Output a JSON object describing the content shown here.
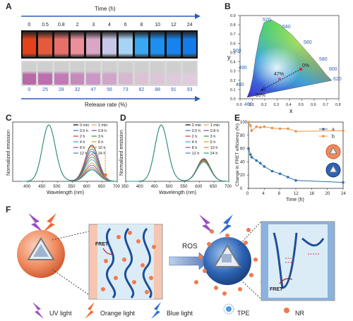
{
  "panel_labels": {
    "a": "A",
    "b": "B",
    "c": "C",
    "d": "D",
    "e": "E",
    "f": "F"
  },
  "panel_a": {
    "time_title": "Time (h)",
    "time_labels": [
      "0",
      "0.5",
      "0.8",
      "2",
      "3",
      "4",
      "6",
      "8",
      "10",
      "12",
      "24"
    ],
    "release_title": "Release rate (%)",
    "release_values": [
      "0",
      "25",
      "28",
      "32",
      "47",
      "56",
      "73",
      "82",
      "88",
      "91",
      "93"
    ],
    "vial_colors": [
      "#e2431c",
      "#e65a3c",
      "#e8706a",
      "#eb8f9b",
      "#d9a6c6",
      "#c9c7e8",
      "#a7d4f4",
      "#39a7f2",
      "#1c8ff0",
      "#1683ee",
      "#147ce9"
    ],
    "sample_colors": [
      "#b66aa6",
      "#bc6faf",
      "#c27bb5",
      "#c889bc",
      "#cc97c4",
      "#cfa6c9",
      "#d6b9cf",
      "#dbc3d4",
      "#ddc6d8",
      "#dfcadb",
      "#e0ccdc"
    ]
  },
  "panel_b": {
    "xlabel": "x",
    "ylabel": "y",
    "locus_labels": [
      "520",
      "540",
      "560",
      "580",
      "600",
      "620",
      "500",
      "490",
      "480",
      "460"
    ],
    "xticks": [
      "0.0",
      "0.1",
      "0.2",
      "0.3",
      "0.4",
      "0.5",
      "0.6",
      "0.7",
      "0.8"
    ],
    "yticks": [
      "0.0",
      "0.1",
      "0.2",
      "0.3",
      "0.4",
      "0.5",
      "0.6",
      "0.7",
      "0.8",
      "0.9"
    ],
    "point_labels": [
      "47%",
      "0%",
      "93%"
    ]
  },
  "chart_data": [
    {
      "panel": "C",
      "type": "line",
      "xlabel": "Wavelength (nm)",
      "ylabel": "Normalized emission",
      "xlim": [
        350,
        700
      ],
      "ylim": [
        0,
        1.1
      ],
      "xticks": [
        "400",
        "450",
        "500",
        "550",
        "600",
        "650",
        "700"
      ],
      "legend_position": "top-right",
      "series": [
        {
          "name": "0 min",
          "color": "#000000",
          "peak2": 0.67
        },
        {
          "name": "1 min",
          "color": "#f29a54",
          "peak2": 0.65
        },
        {
          "name": "0.5 h",
          "color": "#2b7bd8",
          "peak2": 0.6
        },
        {
          "name": "0.8 h",
          "color": "#7b4aa8",
          "peak2": 0.56
        },
        {
          "name": "2 h",
          "color": "#c0392b",
          "peak2": 0.5
        },
        {
          "name": "3 h",
          "color": "#2f8f5b",
          "peak2": 0.45
        },
        {
          "name": "4 h",
          "color": "#3aa0c9",
          "peak2": 0.4
        },
        {
          "name": "6 h",
          "color": "#d4a017",
          "peak2": 0.34
        },
        {
          "name": "8 h",
          "color": "#8e44ad",
          "peak2": 0.3
        },
        {
          "name": "10 h",
          "color": "#e67e22",
          "peak2": 0.26
        },
        {
          "name": "12 h",
          "color": "#4d79c7",
          "peak2": 0.23
        },
        {
          "name": "24 h",
          "color": "#16a085",
          "peak2": 0.21
        }
      ]
    },
    {
      "panel": "D",
      "type": "line",
      "xlabel": "Wavelength (nm)",
      "ylabel": "Normalized emission",
      "xlim": [
        350,
        700
      ],
      "ylim": [
        0,
        1.1
      ],
      "xticks": [
        "350",
        "400",
        "450",
        "500",
        "550",
        "600",
        "650",
        "700"
      ],
      "legend_position": "top-right",
      "series": [
        {
          "name": "0 min",
          "color": "#000000",
          "peak2": 0.42
        },
        {
          "name": "1 min",
          "color": "#f29a54",
          "peak2": 0.41
        },
        {
          "name": "0.5 h",
          "color": "#2b7bd8",
          "peak2": 0.4
        },
        {
          "name": "0.8 h",
          "color": "#7b4aa8",
          "peak2": 0.4
        },
        {
          "name": "2 h",
          "color": "#c0392b",
          "peak2": 0.39
        },
        {
          "name": "3 h",
          "color": "#2f8f5b",
          "peak2": 0.39
        },
        {
          "name": "4 h",
          "color": "#3aa0c9",
          "peak2": 0.38
        },
        {
          "name": "6 h",
          "color": "#d4a017",
          "peak2": 0.38
        },
        {
          "name": "8 h",
          "color": "#8e44ad",
          "peak2": 0.37
        },
        {
          "name": "10 h",
          "color": "#e67e22",
          "peak2": 0.37
        },
        {
          "name": "12 h",
          "color": "#4d79c7",
          "peak2": 0.36
        },
        {
          "name": "24 h",
          "color": "#16a085",
          "peak2": 0.36
        }
      ]
    },
    {
      "panel": "E",
      "type": "line",
      "xlabel": "Time (h)",
      "ylabel": "Change in FRET efficiency (%)",
      "xlim": [
        0,
        24
      ],
      "ylim": [
        0,
        100
      ],
      "xticks": [
        "0",
        "4",
        "8",
        "12",
        "16",
        "20",
        "24"
      ],
      "yticks": [
        "0",
        "20",
        "40",
        "60",
        "80",
        "100"
      ],
      "legend_position": "top-right",
      "series": [
        {
          "name": "a",
          "color": "#2f6fae",
          "x": [
            0,
            0.5,
            0.8,
            2,
            3,
            4,
            6,
            8,
            10,
            12,
            24
          ],
          "y": [
            60,
            51,
            47,
            42,
            38,
            33,
            26,
            22,
            17,
            12,
            9
          ]
        },
        {
          "name": "b",
          "color": "#f0924a",
          "x": [
            0,
            0.5,
            0.8,
            2,
            3,
            4,
            6,
            8,
            10,
            12,
            24
          ],
          "y": [
            100,
            95,
            87,
            93,
            92,
            93,
            91,
            90,
            90,
            86,
            87
          ]
        }
      ]
    }
  ],
  "panel_f": {
    "ros_label": "ROS",
    "fret_label": "FRET",
    "legend": {
      "uv": "UV light",
      "orange": "Orange light",
      "blue": "Blue light",
      "tpe": "TPE",
      "nr": "NR"
    }
  }
}
